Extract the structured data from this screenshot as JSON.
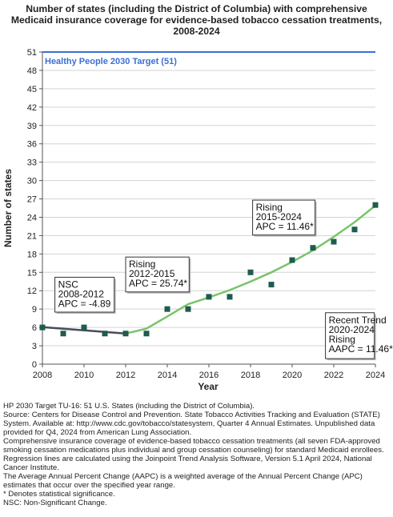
{
  "chart_data": {
    "type": "scatter",
    "title_lines": [
      "Number of states (including the District of Columbia) with comprehensive",
      "Medicaid insurance coverage for evidence-based tobacco cessation treatments,",
      "2008-2024"
    ],
    "xlabel": "Year",
    "ylabel": "Number of states",
    "xlim": [
      2008,
      2024
    ],
    "ylim": [
      0,
      51
    ],
    "xticks": [
      2008,
      2010,
      2012,
      2014,
      2016,
      2018,
      2020,
      2022,
      2024
    ],
    "yticks": [
      0,
      3,
      6,
      9,
      12,
      15,
      18,
      21,
      24,
      27,
      30,
      33,
      36,
      39,
      42,
      45,
      48,
      51
    ],
    "grid": "horizontal",
    "points": {
      "x": [
        2008,
        2009,
        2010,
        2011,
        2012,
        2013,
        2014,
        2015,
        2016,
        2017,
        2018,
        2019,
        2020,
        2021,
        2022,
        2023,
        2024
      ],
      "y": [
        6,
        5,
        6,
        5,
        5,
        5,
        9,
        9,
        11,
        11,
        15,
        13,
        17,
        19,
        20,
        22,
        26
      ],
      "color": "#1f5c4e"
    },
    "target": {
      "value": 51,
      "label": "Healthy People 2030 Target (51)",
      "color": "#3a6fd6"
    },
    "trend_segments": [
      {
        "x": [
          2008,
          2012
        ],
        "y": [
          6.05,
          5.0
        ],
        "color": "#454d57"
      },
      {
        "x": [
          2012,
          2013,
          2014,
          2015,
          2016,
          2017,
          2018,
          2019,
          2020,
          2021,
          2022,
          2023,
          2024
        ],
        "y": [
          5.0,
          5.8,
          7.8,
          9.8,
          10.9,
          12.1,
          13.5,
          15.0,
          16.7,
          18.6,
          20.8,
          23.2,
          25.9
        ],
        "color": "#79c46b"
      }
    ],
    "annotations": [
      {
        "lines": [
          "NSC",
          "2008-2012",
          "APC = -4.89"
        ],
        "anchor_x": 2008.6,
        "anchor_y": 14.2,
        "width_years": 2.85,
        "height_units": 5.7
      },
      {
        "lines": [
          "Rising",
          "2012-2015",
          "APC = 25.74*"
        ],
        "anchor_x": 2012.0,
        "anchor_y": 17.5,
        "width_years": 3.05,
        "height_units": 5.7
      },
      {
        "lines": [
          "Rising",
          "2015-2024",
          "APC = 11.46*"
        ],
        "anchor_x": 2018.1,
        "anchor_y": 26.8,
        "width_years": 3.0,
        "height_units": 5.7
      },
      {
        "lines": [
          "Recent Trend",
          "2020-2024",
          "Rising",
          "AAPC = 11.46*"
        ],
        "anchor_x": 2021.6,
        "anchor_y": 8.4,
        "width_years": 2.35,
        "height_units": 7.5
      }
    ]
  },
  "footnotes": [
    "HP 2030 Target TU-16: 51 U.S. States (including the District of Columbia).",
    "Source: Centers for Disease Control and Prevention. State Tobacco Activities Tracking and Evaluation (STATE) System. Available at: http://www.cdc.gov/tobacco/statesystem, Quarter 4 Annual Estimates. Unpublished data provided for Q4, 2024 from American Lung Association.",
    "Comprehensive insurance coverage of evidence-based tobacco cessation treatments (all seven FDA-approved smoking cessation medications plus individual and group cessation counseling) for standard Medicaid enrollees.",
    "Regression lines are calculated using the Joinpoint Trend Analysis Software, Version 5.1 April 2024, National Cancer Institute.",
    "The Average Annual Percent Change (AAPC) is a weighted average of the Annual Percent Change (APC) estimates that occur over the specified year range.",
    "* Denotes statistical significance.",
    "NSC: Non-Significant Change."
  ]
}
